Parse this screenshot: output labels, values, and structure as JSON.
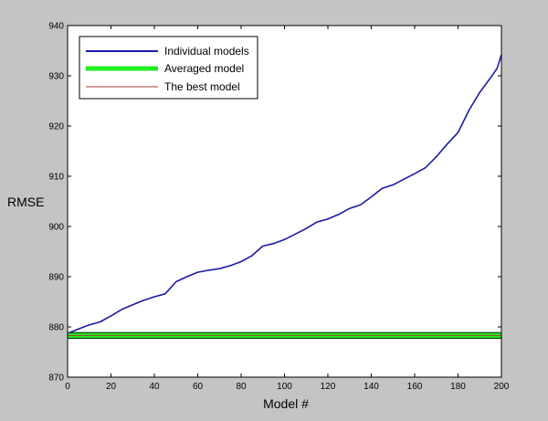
{
  "chart_data": {
    "type": "line",
    "xlabel": "Model #",
    "ylabel": "RMSE",
    "xlim": [
      0,
      200
    ],
    "ylim": [
      870,
      940
    ],
    "xticks": [
      0,
      20,
      40,
      60,
      80,
      100,
      120,
      140,
      160,
      180,
      200
    ],
    "yticks": [
      870,
      880,
      890,
      900,
      910,
      920,
      930,
      940
    ],
    "grid": false,
    "legend_position": "top-left",
    "series": [
      {
        "name": "Individual models",
        "color": "#1a1aa6",
        "x": [
          1,
          5,
          10,
          15,
          20,
          25,
          30,
          35,
          40,
          45,
          50,
          55,
          60,
          65,
          70,
          75,
          80,
          85,
          90,
          95,
          100,
          105,
          110,
          115,
          120,
          125,
          130,
          135,
          140,
          145,
          150,
          155,
          160,
          165,
          170,
          175,
          180,
          185,
          190,
          195,
          198,
          200
        ],
        "values": [
          878.9,
          879.6,
          880.4,
          881.0,
          882.2,
          883.5,
          884.4,
          885.3,
          886.0,
          886.6,
          889.0,
          890.0,
          890.9,
          891.3,
          891.6,
          892.2,
          893.0,
          894.2,
          896.1,
          896.6,
          897.4,
          898.5,
          899.6,
          900.9,
          901.5,
          902.4,
          903.6,
          904.3,
          905.9,
          907.6,
          908.3,
          909.4,
          910.5,
          911.7,
          913.9,
          916.4,
          918.7,
          923.1,
          926.7,
          929.6,
          931.5,
          934.2
        ]
      },
      {
        "name": "Averaged model",
        "color": "#22ee22",
        "x": [
          0,
          200
        ],
        "values": [
          878.3,
          878.3
        ]
      },
      {
        "name": "The best model",
        "color": "#a33b2f",
        "x": [
          0,
          200
        ],
        "values": [
          878.3,
          878.3
        ]
      }
    ]
  }
}
